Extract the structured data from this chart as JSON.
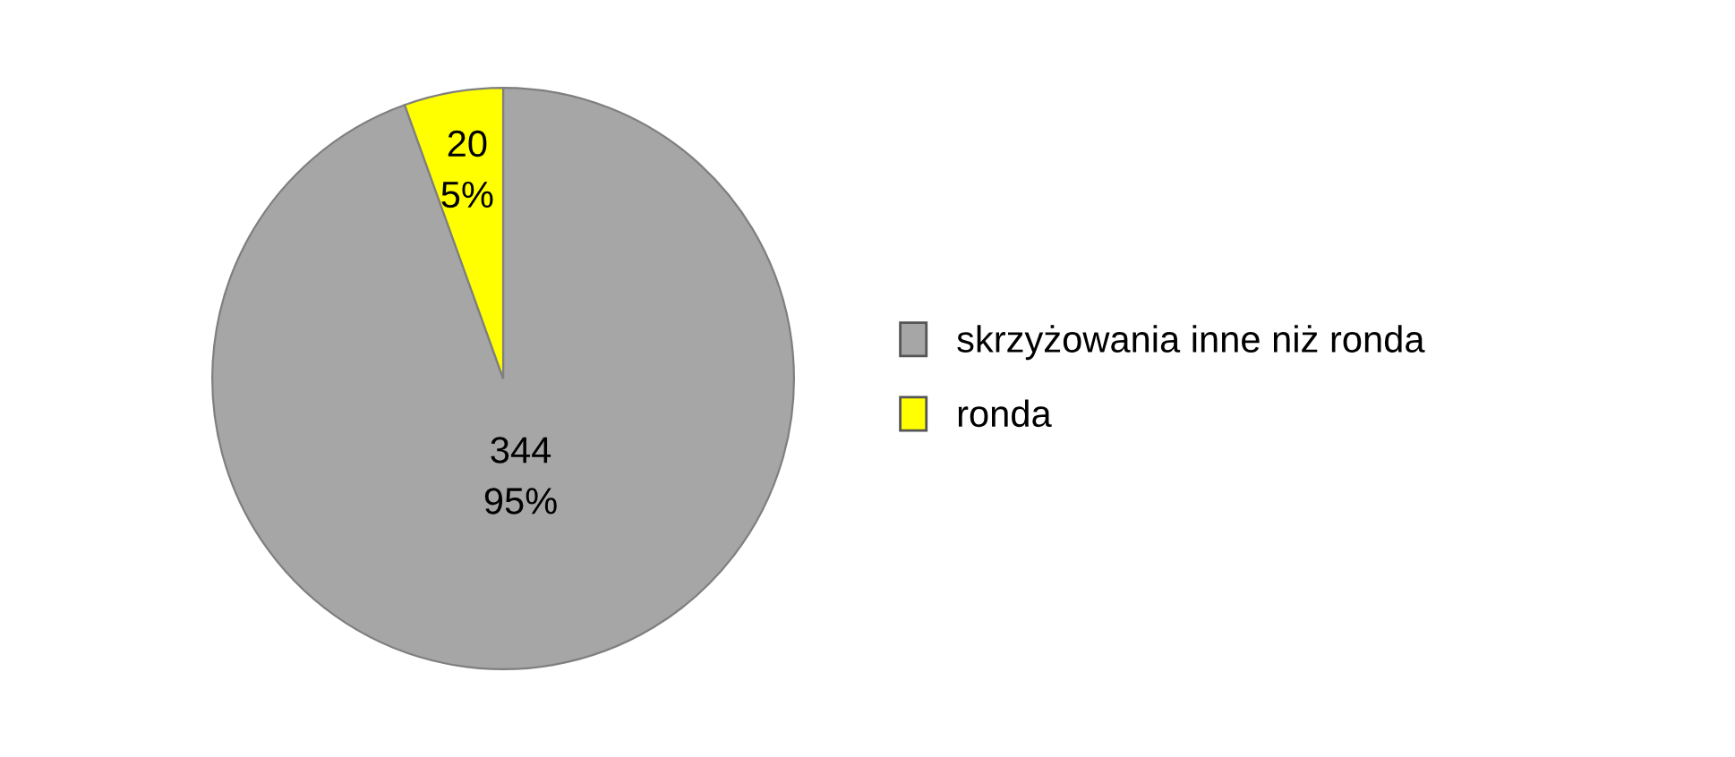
{
  "chart_data": {
    "type": "pie",
    "categories": [
      "skrzyżowania inne niż ronda",
      "ronda"
    ],
    "values": [
      344,
      20
    ],
    "colors": [
      "#a6a6a6",
      "#ffff00"
    ],
    "value_labels": [
      "344\n95%",
      "20\n5%"
    ],
    "legend": "right"
  }
}
